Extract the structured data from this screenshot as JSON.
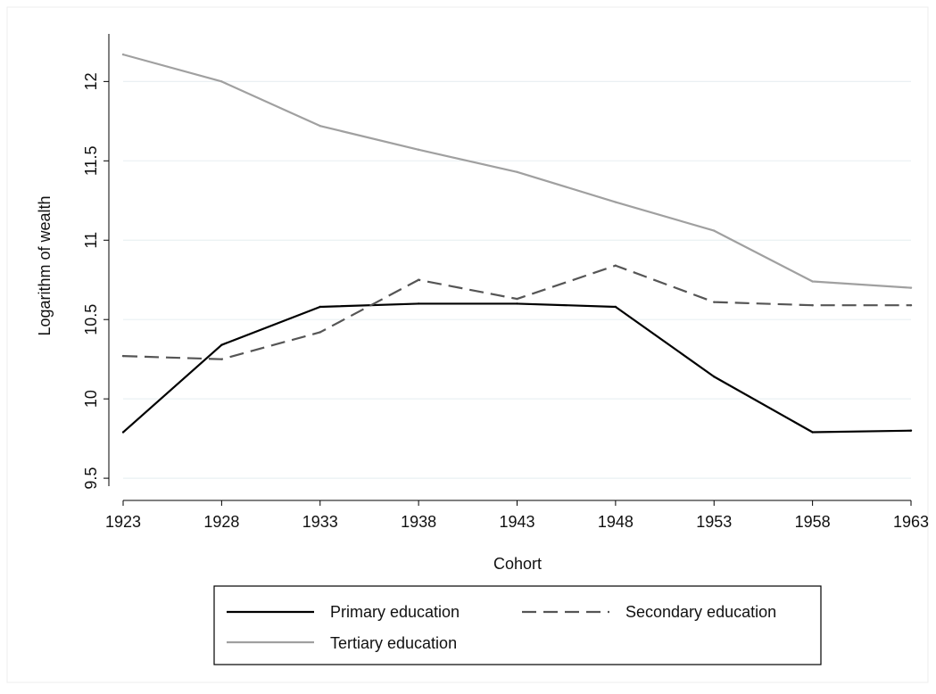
{
  "chart_data": {
    "type": "line",
    "title": "",
    "xlabel": "Cohort",
    "ylabel": "Logarithm of wealth",
    "x": [
      1923,
      1928,
      1933,
      1938,
      1943,
      1948,
      1953,
      1958,
      1963
    ],
    "x_ticks": [
      "1923",
      "1928",
      "1933",
      "1938",
      "1943",
      "1948",
      "1953",
      "1958",
      "1963"
    ],
    "y_ticks": [
      "9.5",
      "10",
      "10.5",
      "11",
      "11.5",
      "12"
    ],
    "xlim": [
      1923,
      1963
    ],
    "ylim": [
      9.45,
      12.3
    ],
    "grid": "horizontal",
    "legend_position": "bottom",
    "series": [
      {
        "name": "Primary education",
        "color": "#000000",
        "dash": "solid",
        "values": [
          9.79,
          10.34,
          10.58,
          10.6,
          10.6,
          10.58,
          10.14,
          9.79,
          9.8
        ]
      },
      {
        "name": "Secondary education",
        "color": "#555555",
        "dash": "dashed",
        "values": [
          10.27,
          10.25,
          10.42,
          10.75,
          10.63,
          10.84,
          10.61,
          10.59,
          10.59
        ]
      },
      {
        "name": "Tertiary education",
        "color": "#a0a0a0",
        "dash": "solid",
        "values": [
          12.17,
          12.0,
          11.72,
          11.57,
          11.43,
          11.24,
          11.06,
          10.74,
          10.7
        ]
      }
    ]
  }
}
